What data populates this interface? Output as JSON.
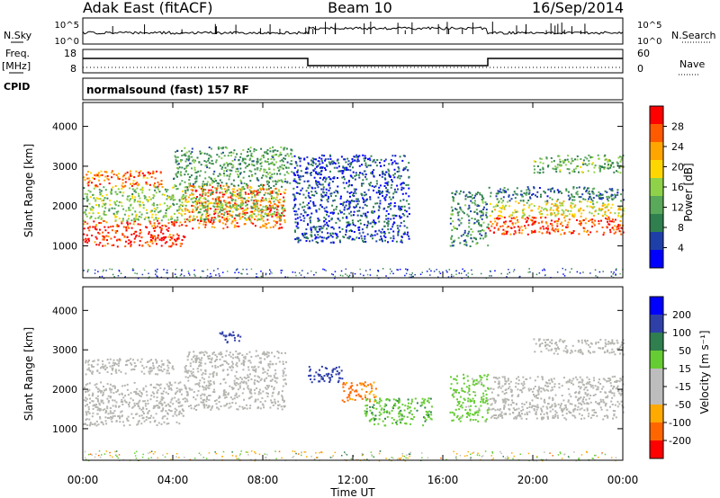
{
  "header": {
    "station": "Adak East (fitACF)",
    "beam": "Beam 10",
    "date": "16/Sep/2014"
  },
  "params": {
    "nsky_label": "N.Sky",
    "nsearch_label": "N.Search",
    "nsky_ticks": [
      "10^5",
      "10^0"
    ],
    "nsearch_ticks": [
      "10^5",
      "10^0"
    ],
    "freq_label_1": "Freq.",
    "freq_label_2": "[MHz]",
    "freq_ticks": [
      "18",
      "8"
    ],
    "nave_label": "Nave",
    "nave_ticks": [
      "60",
      "0"
    ],
    "cpid_label": "CPID",
    "cpid_text": "normalsound (fast) 157 RF"
  },
  "colors": {
    "power_scale": [
      "#0000ff",
      "#1f3fa8",
      "#2f7f4f",
      "#5aa85a",
      "#8fd24a",
      "#ffd700",
      "#ffa500",
      "#ff5a00",
      "#ff0000"
    ],
    "velocity_scale": [
      "#0000ff",
      "#2f3fa8",
      "#2f7f4f",
      "#66cc33",
      "#bdbdbd",
      "#bdbdbd",
      "#ffaa00",
      "#ff6600",
      "#ff0000"
    ],
    "ground_scatter": "#b5b5b0"
  },
  "chart_data": [
    {
      "type": "heatmap",
      "name": "power",
      "xlabel": "Time UT",
      "ylabel": "Slant Range [km]",
      "xlim": [
        0,
        24
      ],
      "ylim": [
        200,
        4600
      ],
      "x_ticks": [
        "00:00",
        "04:00",
        "08:00",
        "12:00",
        "16:00",
        "20:00",
        "00:00"
      ],
      "x_tick_values": [
        0,
        4,
        8,
        12,
        16,
        20,
        24
      ],
      "y_ticks": [
        1000,
        2000,
        3000,
        4000
      ],
      "colorbar": {
        "label": "Power [dB]",
        "ticks": [
          4,
          8,
          12,
          16,
          20,
          24,
          28
        ],
        "range": [
          0,
          30
        ]
      },
      "regions": [
        {
          "t0": 0.0,
          "t1": 4.5,
          "r0": 1000,
          "r1": 1650,
          "power": 27
        },
        {
          "t0": 0.0,
          "t1": 3.5,
          "r0": 2500,
          "r1": 2900,
          "power": 24
        },
        {
          "t0": 4.5,
          "t1": 9.0,
          "r0": 1450,
          "r1": 2550,
          "power": 25
        },
        {
          "t0": 0.0,
          "t1": 9.0,
          "r0": 1650,
          "r1": 2500,
          "power": 14
        },
        {
          "t0": 4.0,
          "t1": 9.3,
          "r0": 2500,
          "r1": 3500,
          "power": 11
        },
        {
          "t0": 9.3,
          "t1": 14.5,
          "r0": 1100,
          "r1": 3300,
          "power": 5
        },
        {
          "t0": 16.3,
          "t1": 18.0,
          "r0": 1000,
          "r1": 2400,
          "power": 9
        },
        {
          "t0": 18.0,
          "t1": 24.0,
          "r0": 1300,
          "r1": 1750,
          "power": 26
        },
        {
          "t0": 18.0,
          "t1": 24.0,
          "r0": 1750,
          "r1": 2150,
          "power": 18
        },
        {
          "t0": 18.0,
          "t1": 24.0,
          "r0": 2150,
          "r1": 2500,
          "power": 8
        },
        {
          "t0": 20.0,
          "t1": 24.0,
          "r0": 2850,
          "r1": 3300,
          "power": 12
        }
      ]
    },
    {
      "type": "heatmap",
      "name": "velocity",
      "xlabel": "Time UT",
      "ylabel": "Slant Range [km]",
      "xlim": [
        0,
        24
      ],
      "ylim": [
        200,
        4600
      ],
      "x_ticks": [
        "00:00",
        "04:00",
        "08:00",
        "12:00",
        "16:00",
        "20:00",
        "00:00"
      ],
      "x_tick_values": [
        0,
        4,
        8,
        12,
        16,
        20,
        24
      ],
      "y_ticks": [
        1000,
        2000,
        3000,
        4000
      ],
      "colorbar": {
        "label": "Velocity [m s⁻¹]",
        "ticks": [
          200,
          100,
          50,
          15,
          -15,
          -50,
          -100,
          -200
        ]
      },
      "regions": [
        {
          "t0": 0.0,
          "t1": 4.5,
          "r0": 1100,
          "r1": 2200,
          "velocity": 0,
          "ground_scatter": true
        },
        {
          "t0": 0.0,
          "t1": 4.0,
          "r0": 2400,
          "r1": 2800,
          "velocity": 0,
          "ground_scatter": true
        },
        {
          "t0": 4.5,
          "t1": 9.0,
          "r0": 1500,
          "r1": 3000,
          "velocity": 0,
          "ground_scatter": true
        },
        {
          "t0": 6.0,
          "t1": 7.0,
          "r0": 3200,
          "r1": 3500,
          "velocity": 150
        },
        {
          "t0": 10.0,
          "t1": 11.5,
          "r0": 2200,
          "r1": 2600,
          "velocity": 180
        },
        {
          "t0": 11.5,
          "t1": 13.0,
          "r0": 1700,
          "r1": 2200,
          "velocity": -60
        },
        {
          "t0": 12.5,
          "t1": 15.5,
          "r0": 1100,
          "r1": 1800,
          "velocity": 40
        },
        {
          "t0": 16.3,
          "t1": 18.0,
          "r0": 1200,
          "r1": 2400,
          "velocity": 30
        },
        {
          "t0": 18.0,
          "t1": 24.0,
          "r0": 1250,
          "r1": 2350,
          "velocity": 0,
          "ground_scatter": true
        },
        {
          "t0": 20.0,
          "t1": 24.0,
          "r0": 2900,
          "r1": 3300,
          "velocity": 0,
          "ground_scatter": true
        }
      ]
    }
  ]
}
